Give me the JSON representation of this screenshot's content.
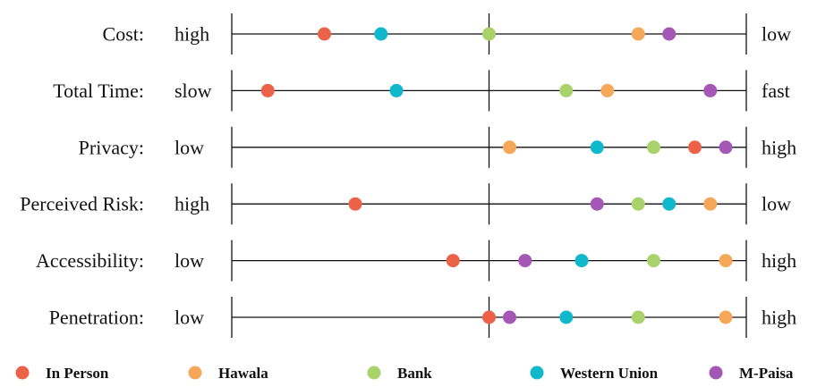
{
  "chart_data": {
    "type": "scatter",
    "x_range": [
      0,
      1
    ],
    "series": [
      {
        "name": "In Person",
        "color": "#ec6248"
      },
      {
        "name": "Hawala",
        "color": "#f5a85a"
      },
      {
        "name": "Bank",
        "color": "#a9d26b"
      },
      {
        "name": "Western Union",
        "color": "#10b8cc"
      },
      {
        "name": "M-Paisa",
        "color": "#a457b4"
      }
    ],
    "rows": [
      {
        "label": "Cost:",
        "low_label": "high",
        "high_label": "low",
        "values": {
          "In Person": 0.18,
          "Western Union": 0.29,
          "Bank": 0.5,
          "Hawala": 0.79,
          "M-Paisa": 0.85
        }
      },
      {
        "label": "Total Time:",
        "low_label": "slow",
        "high_label": "fast",
        "values": {
          "In Person": 0.07,
          "Western Union": 0.32,
          "Bank": 0.65,
          "Hawala": 0.73,
          "M-Paisa": 0.93
        }
      },
      {
        "label": "Privacy:",
        "low_label": "low",
        "high_label": "high",
        "values": {
          "Hawala": 0.54,
          "Western Union": 0.71,
          "Bank": 0.82,
          "In Person": 0.9,
          "M-Paisa": 0.96
        }
      },
      {
        "label": "Perceived Risk:",
        "low_label": "high",
        "high_label": "low",
        "values": {
          "In Person": 0.24,
          "M-Paisa": 0.71,
          "Bank": 0.79,
          "Western Union": 0.85,
          "Hawala": 0.93
        }
      },
      {
        "label": "Accessibility:",
        "low_label": "low",
        "high_label": "high",
        "values": {
          "In Person": 0.43,
          "M-Paisa": 0.57,
          "Western Union": 0.68,
          "Bank": 0.82,
          "Hawala": 0.96
        }
      },
      {
        "label": "Penetration:",
        "low_label": "low",
        "high_label": "high",
        "values": {
          "In Person": 0.5,
          "M-Paisa": 0.54,
          "Western Union": 0.65,
          "Bank": 0.79,
          "Hawala": 0.96
        }
      }
    ]
  }
}
